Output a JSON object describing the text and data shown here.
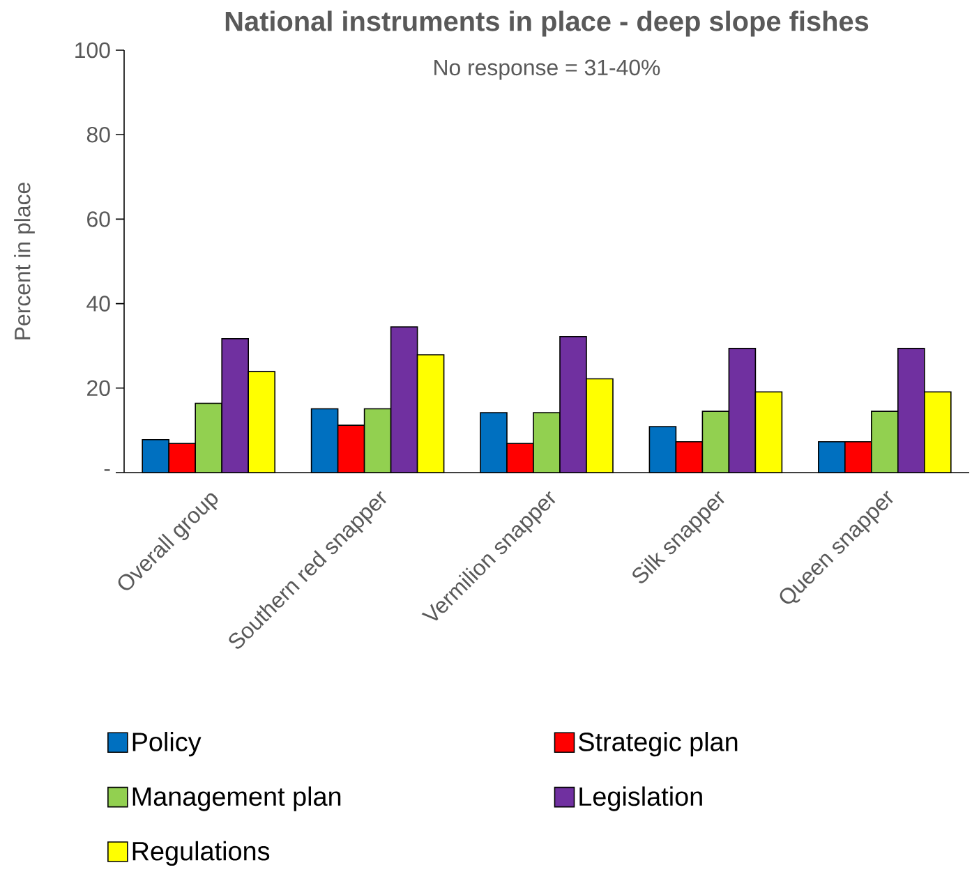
{
  "chart_data": {
    "type": "bar",
    "title": "National instruments in place - deep slope fishes",
    "subtitle": "No response = 31-40%",
    "ylabel": "Percent in place",
    "categories": [
      "Overall group",
      "Southern red snapper",
      "Vermilion snapper",
      "Silk snapper",
      "Queen snapper"
    ],
    "series": [
      {
        "name": "Policy",
        "color": "#0070c0",
        "values": [
          7.8,
          15.1,
          14.2,
          10.9,
          7.3
        ]
      },
      {
        "name": "Strategic plan",
        "color": "#ff0000",
        "values": [
          6.9,
          11.2,
          6.9,
          7.3,
          7.3
        ]
      },
      {
        "name": "Management plan",
        "color": "#92d050",
        "values": [
          16.4,
          15.1,
          14.2,
          14.5,
          14.5
        ]
      },
      {
        "name": "Legislation",
        "color": "#7030a0",
        "values": [
          31.7,
          34.5,
          32.2,
          29.4,
          29.4
        ]
      },
      {
        "name": "Regulations",
        "color": "#ffff00",
        "values": [
          23.9,
          27.9,
          22.2,
          19.1,
          19.1
        ]
      }
    ],
    "ylim": [
      0,
      100
    ],
    "yticks": [
      {
        "value": 0,
        "label": "-"
      },
      20,
      40,
      60,
      80,
      100
    ],
    "grid": false,
    "legend": "bottom"
  }
}
